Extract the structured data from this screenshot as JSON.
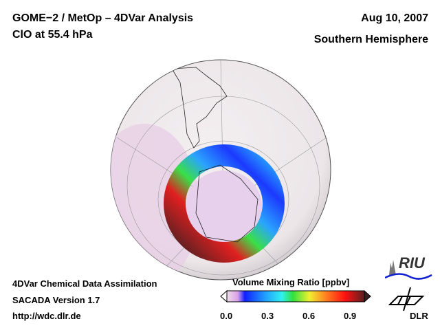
{
  "header": {
    "title": "GOME−2 / MetOp – 4DVar Analysis",
    "subtitle": "ClO at 55.4 hPa",
    "date": "Aug 10, 2007",
    "region": "Southern Hemisphere"
  },
  "footer": {
    "line1": "4DVar Chemical Data Assimilation",
    "line2": "SACADA Version 1.7",
    "url": "http://wdc.dlr.de"
  },
  "colorbar": {
    "title": "Volume Mixing Ratio [ppbv]",
    "ticks": [
      "0.0",
      "0.3",
      "0.6",
      "0.9"
    ],
    "range": [
      0.0,
      1.0
    ],
    "colors": [
      "#f0dde8",
      "#d8a0e8",
      "#1020ff",
      "#20a0ff",
      "#30f0f0",
      "#30e040",
      "#f0f030",
      "#ff8020",
      "#ff1010",
      "#5a2020"
    ]
  },
  "logos": {
    "riu": "RIU",
    "dlr": "DLR"
  },
  "map": {
    "land_color": "#efe9ea",
    "ocean_color": "#ecdcea"
  }
}
